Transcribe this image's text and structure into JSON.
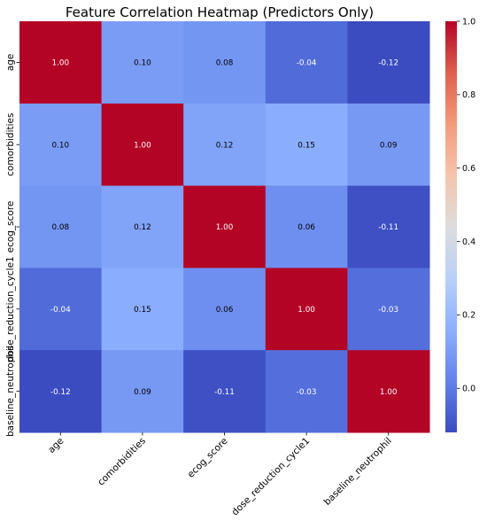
{
  "chart_data": {
    "type": "heatmap",
    "title": "Feature Correlation Heatmap (Predictors Only)",
    "xlabel": "",
    "ylabel": "",
    "x_categories": [
      "age",
      "comorbidities",
      "ecog_score",
      "dose_reduction_cycle1",
      "baseline_neutrophil"
    ],
    "y_categories": [
      "age",
      "comorbidities",
      "ecog_score",
      "dose_reduction_cycle1",
      "baseline_neutrophil"
    ],
    "values": [
      [
        1.0,
        0.1,
        0.08,
        -0.04,
        -0.12
      ],
      [
        0.1,
        1.0,
        0.12,
        0.15,
        0.09
      ],
      [
        0.08,
        0.12,
        1.0,
        0.06,
        -0.11
      ],
      [
        -0.04,
        0.15,
        0.06,
        1.0,
        -0.03
      ],
      [
        -0.12,
        0.09,
        -0.11,
        -0.03,
        1.0
      ]
    ],
    "value_labels": [
      [
        "1.00",
        "0.10",
        "0.08",
        "-0.04",
        "-0.12"
      ],
      [
        "0.10",
        "1.00",
        "0.12",
        "0.15",
        "0.09"
      ],
      [
        "0.08",
        "0.12",
        "1.00",
        "0.06",
        "-0.11"
      ],
      [
        "-0.04",
        "0.15",
        "0.06",
        "1.00",
        "-0.03"
      ],
      [
        "-0.12",
        "0.09",
        "-0.11",
        "-0.03",
        "1.00"
      ]
    ],
    "colormap": "coolwarm",
    "colorbar": {
      "range": [
        -0.12,
        1.0
      ],
      "ticks": [
        0.0,
        0.2,
        0.4,
        0.6,
        0.8,
        1.0
      ],
      "tick_labels": [
        "0.0",
        "0.2",
        "0.4",
        "0.6",
        "0.8",
        "1.0"
      ]
    }
  }
}
